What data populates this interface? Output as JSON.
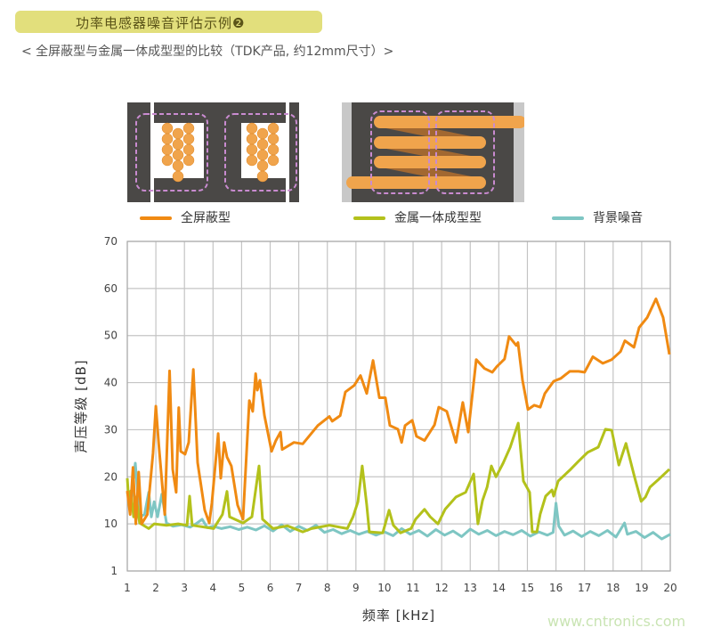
{
  "header": {
    "title": "功率电感器噪音评估示例❷",
    "subtitle": "< 全屏蔽型与金属一体成型型的比较（TDK产品, 约12mm尺寸）>"
  },
  "images": [
    {
      "name": "shielded-inductor-cross-section"
    },
    {
      "name": "metal-molded-inductor-cross-section"
    }
  ],
  "watermark": "www.cntronics.com",
  "chart_data": {
    "type": "line",
    "xlabel": "频率 [kHz]",
    "ylabel": "声压等级 [dB]",
    "xlim": [
      1,
      20
    ],
    "ylim": [
      0,
      70
    ],
    "xticks": [
      1,
      2,
      3,
      4,
      5,
      6,
      7,
      8,
      9,
      10,
      11,
      12,
      13,
      14,
      15,
      16,
      17,
      18,
      19,
      20
    ],
    "yticks": [
      1,
      10,
      20,
      30,
      40,
      50,
      60,
      70
    ],
    "grid": true,
    "legend_placement": "top",
    "series": [
      {
        "name": "全屏蔽型",
        "color": "#f08a12",
        "points": [
          [
            1.0,
            17
          ],
          [
            1.1,
            12
          ],
          [
            1.2,
            22
          ],
          [
            1.3,
            10
          ],
          [
            1.4,
            21
          ],
          [
            1.5,
            10
          ],
          [
            1.7,
            12
          ],
          [
            1.9,
            25
          ],
          [
            2.0,
            35
          ],
          [
            2.1,
            27
          ],
          [
            2.31,
            12
          ],
          [
            2.48,
            42.5
          ],
          [
            2.59,
            21.6
          ],
          [
            2.71,
            16.7
          ],
          [
            2.8,
            34.7
          ],
          [
            2.87,
            25.4
          ],
          [
            3.02,
            24.8
          ],
          [
            3.15,
            27.3
          ],
          [
            3.31,
            42.8
          ],
          [
            3.46,
            23
          ],
          [
            3.71,
            12.9
          ],
          [
            3.87,
            10.2
          ],
          [
            3.96,
            14.4
          ],
          [
            4.18,
            29.2
          ],
          [
            4.27,
            19.7
          ],
          [
            4.39,
            27.3
          ],
          [
            4.49,
            24.2
          ],
          [
            4.64,
            22.3
          ],
          [
            4.86,
            14
          ],
          [
            5.05,
            11
          ],
          [
            5.27,
            36.2
          ],
          [
            5.39,
            33.9
          ],
          [
            5.49,
            41.9
          ],
          [
            5.55,
            38.4
          ],
          [
            5.64,
            40.5
          ],
          [
            5.8,
            33
          ],
          [
            6.05,
            25.4
          ],
          [
            6.2,
            27.7
          ],
          [
            6.36,
            29.5
          ],
          [
            6.42,
            25.8
          ],
          [
            6.83,
            27.3
          ],
          [
            7.14,
            27
          ],
          [
            7.67,
            30.9
          ],
          [
            8.07,
            32.8
          ],
          [
            8.17,
            31.8
          ],
          [
            8.45,
            33
          ],
          [
            8.63,
            38
          ],
          [
            8.94,
            39.4
          ],
          [
            9.16,
            41.5
          ],
          [
            9.38,
            37.7
          ],
          [
            9.6,
            44.7
          ],
          [
            9.82,
            36.8
          ],
          [
            10.03,
            36.8
          ],
          [
            10.19,
            30.9
          ],
          [
            10.47,
            30.1
          ],
          [
            10.6,
            27.3
          ],
          [
            10.72,
            30.9
          ],
          [
            10.97,
            32
          ],
          [
            11.12,
            28.6
          ],
          [
            11.4,
            27.7
          ],
          [
            11.75,
            31
          ],
          [
            11.9,
            34.8
          ],
          [
            12.18,
            33.9
          ],
          [
            12.5,
            27.3
          ],
          [
            12.74,
            35.8
          ],
          [
            12.93,
            29.5
          ],
          [
            13.21,
            44.9
          ],
          [
            13.5,
            43
          ],
          [
            13.77,
            42.2
          ],
          [
            13.93,
            43.4
          ],
          [
            14.2,
            45
          ],
          [
            14.36,
            49.8
          ],
          [
            14.61,
            47.9
          ],
          [
            14.67,
            48.5
          ],
          [
            14.83,
            40.5
          ],
          [
            15.02,
            34.3
          ],
          [
            15.24,
            35.2
          ],
          [
            15.45,
            34.8
          ],
          [
            15.61,
            37.7
          ],
          [
            15.92,
            40.3
          ],
          [
            16.17,
            40.9
          ],
          [
            16.48,
            42.4
          ],
          [
            16.79,
            42.4
          ],
          [
            17.0,
            42.2
          ],
          [
            17.29,
            45.5
          ],
          [
            17.64,
            44.1
          ],
          [
            17.95,
            44.9
          ],
          [
            18.26,
            46.6
          ],
          [
            18.41,
            48.9
          ],
          [
            18.73,
            47.5
          ],
          [
            18.91,
            51.7
          ],
          [
            19.19,
            53.8
          ],
          [
            19.5,
            57.8
          ],
          [
            19.75,
            53.8
          ],
          [
            19.97,
            46
          ]
        ]
      },
      {
        "name": "金属一体成型型",
        "color": "#b3c11b",
        "points": [
          [
            1.0,
            19.7
          ],
          [
            1.06,
            14
          ],
          [
            1.12,
            17
          ],
          [
            1.22,
            11.5
          ],
          [
            1.31,
            15.7
          ],
          [
            1.43,
            10.2
          ],
          [
            1.75,
            9
          ],
          [
            1.94,
            10
          ],
          [
            2.37,
            9.7
          ],
          [
            2.78,
            10
          ],
          [
            3.09,
            9.7
          ],
          [
            3.18,
            15.9
          ],
          [
            3.27,
            9.7
          ],
          [
            4.02,
            9
          ],
          [
            4.33,
            12
          ],
          [
            4.49,
            16.9
          ],
          [
            4.58,
            11.5
          ],
          [
            5.05,
            10.2
          ],
          [
            5.36,
            11.5
          ],
          [
            5.61,
            22.3
          ],
          [
            5.73,
            11
          ],
          [
            6.1,
            9
          ],
          [
            6.6,
            9.6
          ],
          [
            7.14,
            8.3
          ],
          [
            7.45,
            9
          ],
          [
            8.07,
            9.7
          ],
          [
            8.7,
            9
          ],
          [
            8.9,
            11.5
          ],
          [
            9.07,
            14.7
          ],
          [
            9.22,
            22.3
          ],
          [
            9.38,
            14
          ],
          [
            9.47,
            8.3
          ],
          [
            9.94,
            8.1
          ],
          [
            10.16,
            12.9
          ],
          [
            10.31,
            9.7
          ],
          [
            10.56,
            8.1
          ],
          [
            10.93,
            9
          ],
          [
            11.09,
            11
          ],
          [
            11.4,
            13.1
          ],
          [
            11.6,
            11.5
          ],
          [
            11.87,
            10
          ],
          [
            12.12,
            13.1
          ],
          [
            12.5,
            15.7
          ],
          [
            12.84,
            16.7
          ],
          [
            13.12,
            20.6
          ],
          [
            13.27,
            10
          ],
          [
            13.43,
            15
          ],
          [
            13.59,
            17.8
          ],
          [
            13.74,
            22.3
          ],
          [
            13.9,
            20
          ],
          [
            14.15,
            22.9
          ],
          [
            14.4,
            26.3
          ],
          [
            14.68,
            31.4
          ],
          [
            14.86,
            19.1
          ],
          [
            15.08,
            16.7
          ],
          [
            15.17,
            8.3
          ],
          [
            15.33,
            8.3
          ],
          [
            15.45,
            12.1
          ],
          [
            15.64,
            15.9
          ],
          [
            15.86,
            17.2
          ],
          [
            15.92,
            15.9
          ],
          [
            16.08,
            19.1
          ],
          [
            16.48,
            21.4
          ],
          [
            16.79,
            23.3
          ],
          [
            17.11,
            25.2
          ],
          [
            17.48,
            26.3
          ],
          [
            17.73,
            30.1
          ],
          [
            17.95,
            29.9
          ],
          [
            18.2,
            22.5
          ],
          [
            18.45,
            27.1
          ],
          [
            18.76,
            19.7
          ],
          [
            18.98,
            14.8
          ],
          [
            19.13,
            15.7
          ],
          [
            19.29,
            17.8
          ],
          [
            19.6,
            19.5
          ],
          [
            19.97,
            21.6
          ]
        ]
      },
      {
        "name": "背景噪音",
        "color": "#7ec6c3",
        "points": [
          [
            1.0,
            16.7
          ],
          [
            1.12,
            14
          ],
          [
            1.28,
            22.9
          ],
          [
            1.43,
            11.5
          ],
          [
            1.6,
            12
          ],
          [
            1.75,
            16.7
          ],
          [
            1.84,
            11.5
          ],
          [
            1.94,
            14.7
          ],
          [
            2.06,
            11.5
          ],
          [
            2.21,
            16.3
          ],
          [
            2.37,
            10.2
          ],
          [
            2.6,
            9.5
          ],
          [
            2.9,
            9.8
          ],
          [
            3.2,
            9.3
          ],
          [
            3.4,
            10
          ],
          [
            3.62,
            11
          ],
          [
            3.8,
            9.2
          ],
          [
            4.0,
            9.5
          ],
          [
            4.3,
            9
          ],
          [
            4.6,
            9.4
          ],
          [
            4.9,
            8.8
          ],
          [
            5.2,
            9.3
          ],
          [
            5.5,
            8.7
          ],
          [
            5.8,
            9.6
          ],
          [
            6.1,
            8.5
          ],
          [
            6.4,
            9.8
          ],
          [
            6.7,
            8.4
          ],
          [
            7.0,
            9.5
          ],
          [
            7.3,
            8.6
          ],
          [
            7.6,
            9.7
          ],
          [
            7.9,
            8.2
          ],
          [
            8.2,
            8.8
          ],
          [
            8.5,
            7.9
          ],
          [
            8.8,
            8.6
          ],
          [
            9.1,
            7.8
          ],
          [
            9.4,
            8.4
          ],
          [
            9.7,
            7.6
          ],
          [
            10.0,
            8.3
          ],
          [
            10.3,
            7.5
          ],
          [
            10.6,
            9
          ],
          [
            10.9,
            7.8
          ],
          [
            11.2,
            8.6
          ],
          [
            11.5,
            7.4
          ],
          [
            11.8,
            8.8
          ],
          [
            12.1,
            7.6
          ],
          [
            12.4,
            8.5
          ],
          [
            12.7,
            7.3
          ],
          [
            13.0,
            8.9
          ],
          [
            13.3,
            7.8
          ],
          [
            13.6,
            8.6
          ],
          [
            13.9,
            7.5
          ],
          [
            14.2,
            8.4
          ],
          [
            14.5,
            7.7
          ],
          [
            14.8,
            8.6
          ],
          [
            15.1,
            7.4
          ],
          [
            15.4,
            8.3
          ],
          [
            15.7,
            7.6
          ],
          [
            15.9,
            8.2
          ],
          [
            16.0,
            14.4
          ],
          [
            16.1,
            9.5
          ],
          [
            16.3,
            7.6
          ],
          [
            16.6,
            8.5
          ],
          [
            16.9,
            7.3
          ],
          [
            17.2,
            8.4
          ],
          [
            17.5,
            7.5
          ],
          [
            17.8,
            8.6
          ],
          [
            18.1,
            7.2
          ],
          [
            18.4,
            10.2
          ],
          [
            18.5,
            7.8
          ],
          [
            18.8,
            8.4
          ],
          [
            19.1,
            7.1
          ],
          [
            19.4,
            8.2
          ],
          [
            19.7,
            6.8
          ],
          [
            20.0,
            7.8
          ]
        ]
      }
    ]
  }
}
